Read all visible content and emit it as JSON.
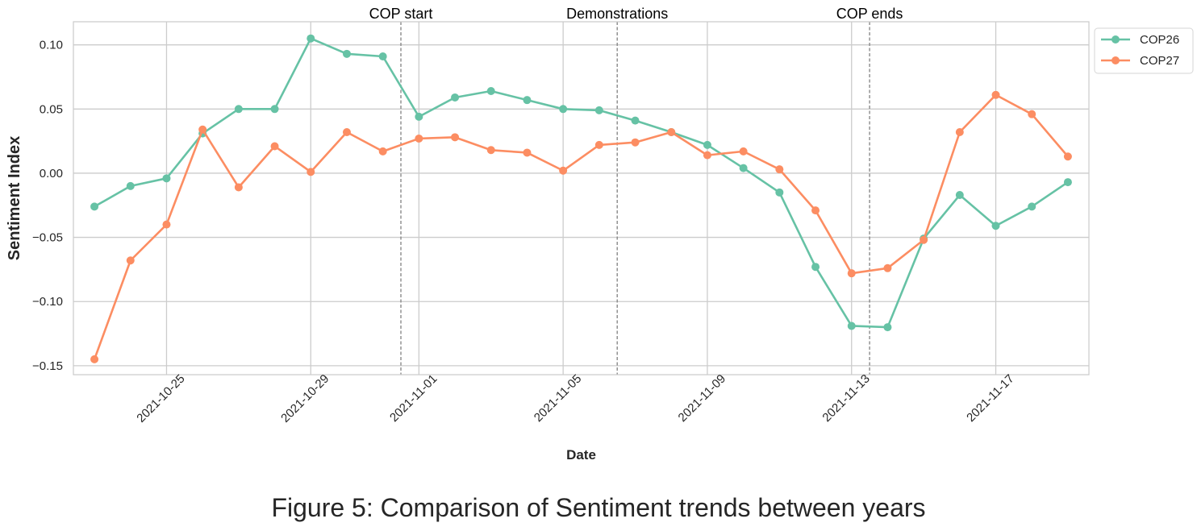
{
  "caption": "Figure 5: Comparison of Sentiment trends between years",
  "chart_data": {
    "type": "line",
    "title": "",
    "xlabel": "Date",
    "ylabel": "Sentiment Index",
    "x": [
      "2021-10-23",
      "2021-10-24",
      "2021-10-25",
      "2021-10-26",
      "2021-10-27",
      "2021-10-28",
      "2021-10-29",
      "2021-10-30",
      "2021-10-31",
      "2021-11-01",
      "2021-11-02",
      "2021-11-03",
      "2021-11-04",
      "2021-11-05",
      "2021-11-06",
      "2021-11-07",
      "2021-11-08",
      "2021-11-09",
      "2021-11-10",
      "2021-11-11",
      "2021-11-12",
      "2021-11-13",
      "2021-11-14",
      "2021-11-15",
      "2021-11-16",
      "2021-11-17",
      "2021-11-18",
      "2021-11-19"
    ],
    "x_ticks": [
      "2021-10-25",
      "2021-10-29",
      "2021-11-01",
      "2021-11-05",
      "2021-11-09",
      "2021-11-13",
      "2021-11-17"
    ],
    "y_ticks": [
      "0.10",
      "0.05",
      "0.00",
      "−0.05",
      "−0.10",
      "−0.15"
    ],
    "y_tick_values": [
      0.1,
      0.05,
      0.0,
      -0.05,
      -0.1,
      -0.15
    ],
    "ylim": [
      -0.157,
      0.118
    ],
    "xlim": [
      "2021-10-22T10:00",
      "2021-11-19T14:00"
    ],
    "grid": true,
    "legend_position": "outside-top-right",
    "series": [
      {
        "name": "COP26",
        "color": "#66c2a5",
        "values": [
          -0.026,
          -0.01,
          -0.004,
          0.031,
          0.05,
          0.05,
          0.105,
          0.093,
          0.091,
          0.044,
          0.059,
          0.064,
          0.057,
          0.05,
          0.049,
          0.041,
          0.032,
          0.022,
          0.004,
          -0.015,
          -0.073,
          -0.119,
          -0.12,
          -0.051,
          -0.017,
          -0.041,
          -0.026,
          -0.007
        ]
      },
      {
        "name": "COP27",
        "color": "#fc8d62",
        "values": [
          -0.145,
          -0.068,
          -0.04,
          0.034,
          -0.011,
          0.021,
          0.001,
          0.032,
          0.017,
          0.027,
          0.028,
          0.018,
          0.016,
          0.002,
          0.022,
          0.024,
          0.032,
          0.014,
          0.017,
          0.003,
          -0.029,
          -0.078,
          -0.074,
          -0.052,
          0.032,
          0.061,
          0.046,
          0.013
        ]
      }
    ],
    "annotations": [
      {
        "label": "COP start",
        "x": "2021-10-31"
      },
      {
        "label": "Demonstrations",
        "x": "2021-11-06"
      },
      {
        "label": "COP ends",
        "x": "2021-11-13"
      }
    ]
  }
}
